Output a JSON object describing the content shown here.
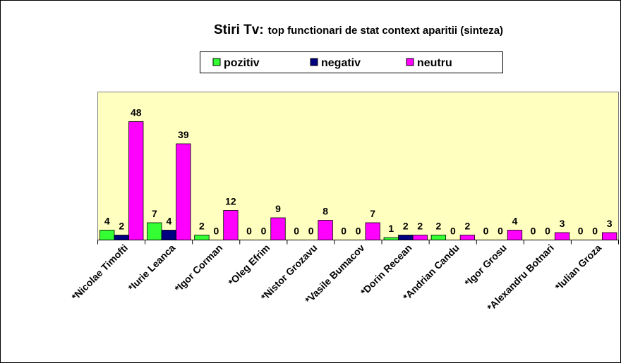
{
  "chart_data": {
    "type": "bar",
    "title": "Stiri Tv:",
    "subtitle": "top functionari de stat context aparitii (sinteza)",
    "categories": [
      "*Nicolae Timofti",
      "*Iurie Leanca",
      "*Igor Corman",
      "*Oleg Efrim",
      "*Nistor Grozavu",
      "*Vasile Bumacov",
      "*Dorin Recean",
      "*Andrian Candu",
      "*Igor Grosu",
      "*Alexandru Botnari",
      "*Iulian Groza"
    ],
    "series": [
      {
        "name": "pozitiv",
        "color": "#33ff33",
        "values": [
          4,
          7,
          2,
          0,
          0,
          0,
          1,
          2,
          0,
          0,
          0
        ]
      },
      {
        "name": "negativ",
        "color": "#000080",
        "values": [
          2,
          4,
          0,
          0,
          0,
          0,
          2,
          0,
          0,
          0,
          0
        ]
      },
      {
        "name": "neutru",
        "color": "#ff00ff",
        "values": [
          48,
          39,
          12,
          9,
          8,
          7,
          2,
          2,
          4,
          3,
          3
        ]
      }
    ]
  }
}
